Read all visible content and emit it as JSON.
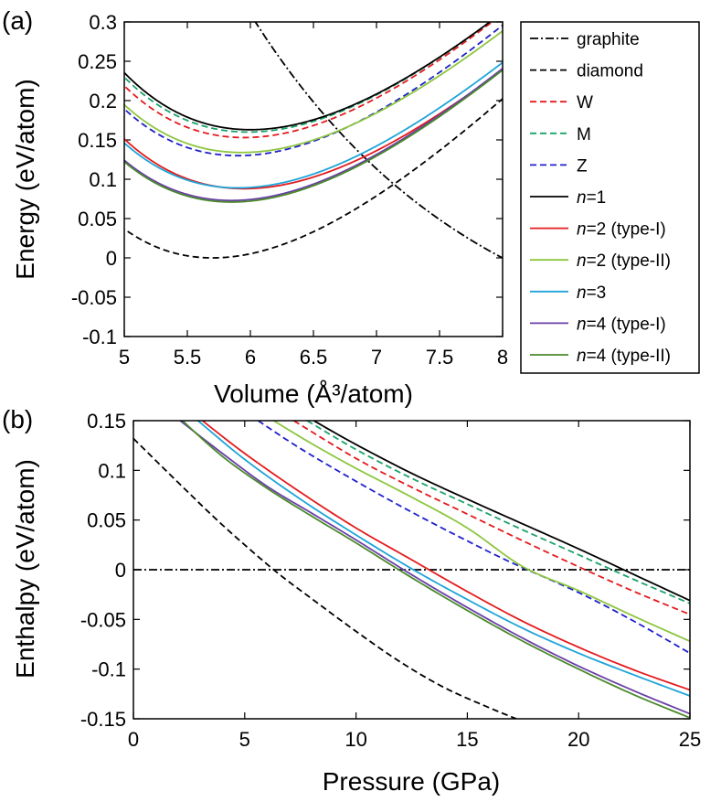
{
  "chart_data": [
    {
      "panel": "(a)",
      "type": "line",
      "xlabel": "Volume (Å³/atom)",
      "ylabel": "Energy (eV/atom)",
      "xlim": [
        5,
        8
      ],
      "ylim": [
        -0.1,
        0.3
      ],
      "xticks": [
        "5",
        "5.5",
        "6",
        "6.5",
        "7",
        "7.5",
        "8"
      ],
      "yticks": [
        "-0.1",
        "-0.05",
        "0",
        "0.05",
        "0.1",
        "0.15",
        "0.2",
        "0.25",
        "0.3"
      ],
      "legend": "right",
      "series": [
        {
          "name": "graphite",
          "kind": "hyper",
          "vmin": 6.0,
          "emin": 0.31,
          "slope": -0.3
        },
        {
          "name": "diamond",
          "kind": "bm",
          "v0": 5.7,
          "e0": 0.0,
          "a": 0.52
        },
        {
          "name": "W",
          "kind": "bm",
          "v0": 5.95,
          "e0": 0.153,
          "a": 0.52
        },
        {
          "name": "M",
          "kind": "bm",
          "v0": 5.98,
          "e0": 0.16,
          "a": 0.52
        },
        {
          "name": "Z",
          "kind": "bm",
          "v0": 5.9,
          "e0": 0.13,
          "a": 0.52
        },
        {
          "name": "n=1",
          "kind": "bm",
          "v0": 6.0,
          "e0": 0.163,
          "a": 0.52
        },
        {
          "name": "n=2 (type-I)",
          "kind": "bm",
          "v0": 5.95,
          "e0": 0.088,
          "a": 0.5
        },
        {
          "name": "n=2 (type-II)",
          "kind": "bm",
          "v0": 5.93,
          "e0": 0.134,
          "a": 0.5
        },
        {
          "name": "n=3",
          "kind": "bm",
          "v0": 5.9,
          "e0": 0.089,
          "a": 0.5
        },
        {
          "name": "n=4 (type-I)",
          "kind": "bm",
          "v0": 5.85,
          "e0": 0.073,
          "a": 0.5
        },
        {
          "name": "n=4 (type-II)",
          "kind": "bm",
          "v0": 5.85,
          "e0": 0.071,
          "a": 0.5
        }
      ]
    },
    {
      "panel": "(b)",
      "type": "line",
      "xlabel": "Pressure (GPa)",
      "ylabel": "Enthalpy (eV/atom)",
      "xlim": [
        0,
        25
      ],
      "ylim": [
        -0.15,
        0.15
      ],
      "xticks": [
        "0",
        "5",
        "10",
        "15",
        "20",
        "25"
      ],
      "yticks": [
        "-0.15",
        "-0.1",
        "-0.05",
        "0",
        "0.05",
        "0.1",
        "0.15"
      ],
      "series": [
        {
          "name": "graphite",
          "points": [
            [
              0,
              0
            ],
            [
              25,
              0
            ]
          ]
        },
        {
          "name": "diamond",
          "points": [
            [
              0,
              0.132
            ],
            [
              2,
              0.088
            ],
            [
              4,
              0.045
            ],
            [
              6.3,
              0.0
            ],
            [
              8,
              -0.029
            ],
            [
              10,
              -0.062
            ],
            [
              12,
              -0.093
            ],
            [
              14,
              -0.119
            ],
            [
              16,
              -0.139
            ],
            [
              17.2,
              -0.15
            ]
          ]
        },
        {
          "name": "W",
          "points": [
            [
              7.2,
              0.15
            ],
            [
              10,
              0.112
            ],
            [
              12.5,
              0.083
            ],
            [
              15,
              0.056
            ],
            [
              17.5,
              0.029
            ],
            [
              20,
              0.003
            ],
            [
              22.5,
              -0.022
            ],
            [
              25,
              -0.045
            ]
          ]
        },
        {
          "name": "M",
          "points": [
            [
              7.8,
              0.15
            ],
            [
              10,
              0.121
            ],
            [
              12.5,
              0.092
            ],
            [
              15,
              0.066
            ],
            [
              17.5,
              0.04
            ],
            [
              20,
              0.015
            ],
            [
              22.5,
              -0.01
            ],
            [
              25,
              -0.034
            ]
          ]
        },
        {
          "name": "Z",
          "points": [
            [
              5.6,
              0.15
            ],
            [
              7.5,
              0.122
            ],
            [
              10,
              0.089
            ],
            [
              12.5,
              0.058
            ],
            [
              15,
              0.029
            ],
            [
              17,
              0.007
            ],
            [
              20,
              -0.023
            ],
            [
              22.5,
              -0.052
            ],
            [
              25,
              -0.084
            ]
          ]
        },
        {
          "name": "n=1",
          "points": [
            [
              8.1,
              0.15
            ],
            [
              10,
              0.126
            ],
            [
              12.5,
              0.097
            ],
            [
              15,
              0.071
            ],
            [
              17.5,
              0.046
            ],
            [
              20,
              0.021
            ],
            [
              22.5,
              -0.005
            ],
            [
              25,
              -0.031
            ]
          ]
        },
        {
          "name": "n=2 (type-I)",
          "points": [
            [
              3.1,
              0.15
            ],
            [
              5,
              0.117
            ],
            [
              7.5,
              0.078
            ],
            [
              10,
              0.042
            ],
            [
              12.5,
              0.01
            ],
            [
              15,
              -0.022
            ],
            [
              17.5,
              -0.052
            ],
            [
              20,
              -0.078
            ],
            [
              22.5,
              -0.101
            ],
            [
              25,
              -0.121
            ]
          ]
        },
        {
          "name": "n=2 (type-II)",
          "points": [
            [
              6.3,
              0.15
            ],
            [
              8,
              0.127
            ],
            [
              10,
              0.102
            ],
            [
              12.5,
              0.073
            ],
            [
              15,
              0.042
            ],
            [
              17.5,
              0.003
            ],
            [
              20,
              -0.021
            ],
            [
              22.5,
              -0.047
            ],
            [
              25,
              -0.072
            ]
          ]
        },
        {
          "name": "n=3",
          "points": [
            [
              2.9,
              0.15
            ],
            [
              5,
              0.111
            ],
            [
              7.5,
              0.071
            ],
            [
              10,
              0.035
            ],
            [
              12.5,
              0.001
            ],
            [
              15,
              -0.03
            ],
            [
              17.5,
              -0.059
            ],
            [
              20,
              -0.084
            ],
            [
              22.5,
              -0.106
            ],
            [
              25,
              -0.127
            ]
          ]
        },
        {
          "name": "n=4 (type-I)",
          "points": [
            [
              2.1,
              0.15
            ],
            [
              4,
              0.117
            ],
            [
              6,
              0.084
            ],
            [
              8,
              0.057
            ],
            [
              10,
              0.03
            ],
            [
              12.5,
              -0.005
            ],
            [
              15,
              -0.038
            ],
            [
              17.5,
              -0.069
            ],
            [
              20,
              -0.097
            ],
            [
              22.5,
              -0.122
            ],
            [
              25,
              -0.145
            ]
          ]
        },
        {
          "name": "n=4 (type-II)",
          "points": [
            [
              2.2,
              0.15
            ],
            [
              4,
              0.114
            ],
            [
              6,
              0.082
            ],
            [
              8,
              0.054
            ],
            [
              10,
              0.027
            ],
            [
              12.5,
              -0.008
            ],
            [
              15,
              -0.041
            ],
            [
              17.5,
              -0.072
            ],
            [
              20,
              -0.1
            ],
            [
              22.5,
              -0.126
            ],
            [
              25,
              -0.149
            ]
          ]
        }
      ]
    }
  ],
  "legend": [
    {
      "label": "graphite",
      "color": "#000000",
      "dash": "dashdot"
    },
    {
      "label": "diamond",
      "color": "#000000",
      "dash": "dashed"
    },
    {
      "label": "W",
      "color": "#e41a1c",
      "dash": "dashed"
    },
    {
      "label": "M",
      "color": "#1aa36a",
      "dash": "dashed"
    },
    {
      "label": "Z",
      "color": "#1f1fcc",
      "dash": "dashed"
    },
    {
      "label": "n=1",
      "italic": "n",
      "rest": "=1",
      "color": "#000000",
      "dash": "solid"
    },
    {
      "label": "n=2 (type-I)",
      "italic": "n",
      "rest": "=2 (type-I)",
      "color": "#e41a1c",
      "dash": "solid"
    },
    {
      "label": "n=2 (type-II)",
      "italic": "n",
      "rest": "=2 (type-II)",
      "color": "#8cc63f",
      "dash": "solid"
    },
    {
      "label": "n=3",
      "italic": "n",
      "rest": "=3",
      "color": "#1ea4d8",
      "dash": "solid"
    },
    {
      "label": "n=4 (type-I)",
      "italic": "n",
      "rest": "=4 (type-I)",
      "color": "#6a3fa8",
      "dash": "solid"
    },
    {
      "label": "n=4 (type-II)",
      "italic": "n",
      "rest": "=4 (type-II)",
      "color": "#4a8a2a",
      "dash": "solid"
    }
  ]
}
